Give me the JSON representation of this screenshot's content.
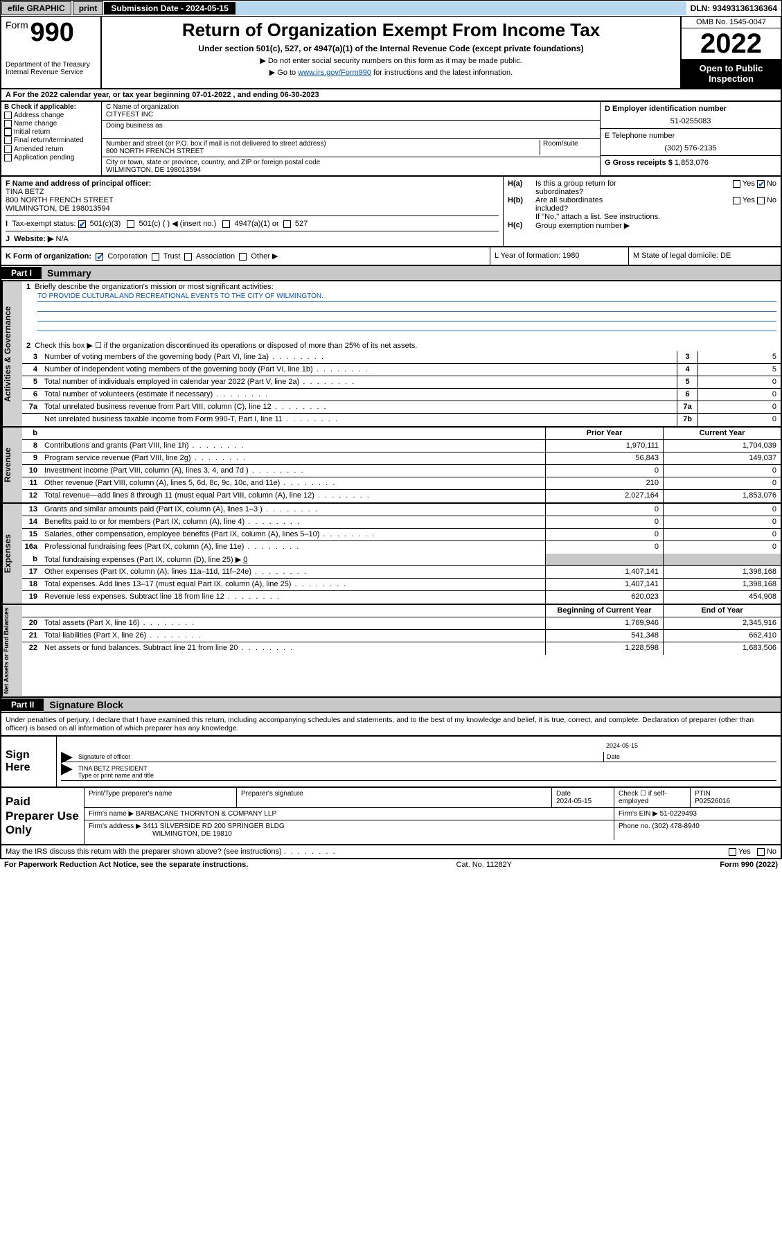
{
  "topbar": {
    "efile": "efile GRAPHIC",
    "print": "print",
    "subdate_label": "Submission Date - 2024-05-15",
    "dln": "DLN: 93493136136364"
  },
  "header": {
    "form_word": "Form",
    "form_num": "990",
    "dept": "Department of the Treasury",
    "irs": "Internal Revenue Service",
    "title": "Return of Organization Exempt From Income Tax",
    "subtitle": "Under section 501(c), 527, or 4947(a)(1) of the Internal Revenue Code (except private foundations)",
    "note1": "▶ Do not enter social security numbers on this form as it may be made public.",
    "note2_pre": "▶ Go to ",
    "note2_link": "www.irs.gov/Form990",
    "note2_post": " for instructions and the latest information.",
    "omb": "OMB No. 1545-0047",
    "year": "2022",
    "open": "Open to Public Inspection"
  },
  "line_a": "A For the 2022 calendar year, or tax year beginning 07-01-2022    , and ending 06-30-2023",
  "col_b": {
    "label": "B Check if applicable:",
    "items": [
      "Address change",
      "Name change",
      "Initial return",
      "Final return/terminated",
      "Amended return",
      "Application pending"
    ]
  },
  "col_c": {
    "c_label": "C Name of organization",
    "c_val": "CITYFEST INC",
    "dba_label": "Doing business as",
    "addr_label": "Number and street (or P.O. box if mail is not delivered to street address)",
    "room_label": "Room/suite",
    "addr_val": "800 NORTH FRENCH STREET",
    "city_label": "City or town, state or province, country, and ZIP or foreign postal code",
    "city_val": "WILMINGTON, DE  198013594",
    "f_label": "F Name and address of principal officer:",
    "f_name": "TINA BETZ",
    "f_addr1": "800 NORTH FRENCH STREET",
    "f_addr2": "WILMINGTON, DE  198013594"
  },
  "col_de": {
    "d_label": "D Employer identification number",
    "d_val": "51-0255083",
    "e_label": "E Telephone number",
    "e_val": "(302) 576-2135",
    "g_label": "G Gross receipts $",
    "g_val": "1,853,076"
  },
  "col_h": {
    "ha_label": "H(a)",
    "ha_q1": "Is this a group return for",
    "ha_q2": "subordinates?",
    "hb_label": "H(b)",
    "hb_q1": "Are all subordinates",
    "hb_q2": "included?",
    "hb_note": "If \"No,\" attach a list. See instructions.",
    "hc_label": "H(c)",
    "hc_q": "Group exemption number ▶",
    "yes": "Yes",
    "no": "No"
  },
  "row_i": {
    "label": "Tax-exempt status:",
    "opt1": "501(c)(3)",
    "opt2": "501(c) (  ) ◀ (insert no.)",
    "opt3": "4947(a)(1) or",
    "opt4": "527"
  },
  "row_j": {
    "label": "Website: ▶",
    "val": "N/A"
  },
  "row_k": {
    "k_label": "K Form of organization:",
    "opts": [
      "Corporation",
      "Trust",
      "Association",
      "Other ▶"
    ],
    "l": "L Year of formation: 1980",
    "m": "M State of legal domicile: DE"
  },
  "parts": {
    "p1": "Part I",
    "p1_title": "Summary",
    "p2": "Part II",
    "p2_title": "Signature Block"
  },
  "summary": {
    "sidebars": [
      "Activities & Governance",
      "Revenue",
      "Expenses",
      "Net Assets or Fund Balances"
    ],
    "line1_label": "Briefly describe the organization's mission or most significant activities:",
    "line1_val": "TO PROVIDE CULTURAL AND RECREATIONAL EVENTS TO THE CITY OF WILMINGTON.",
    "line2": "Check this box ▶ ☐  if the organization discontinued its operations or disposed of more than 25% of its net assets.",
    "gov_rows": [
      {
        "n": "3",
        "t": "Number of voting members of the governing body (Part VI, line 1a)",
        "bn": "3",
        "v": "5"
      },
      {
        "n": "4",
        "t": "Number of independent voting members of the governing body (Part VI, line 1b)",
        "bn": "4",
        "v": "5"
      },
      {
        "n": "5",
        "t": "Total number of individuals employed in calendar year 2022 (Part V, line 2a)",
        "bn": "5",
        "v": "0"
      },
      {
        "n": "6",
        "t": "Total number of volunteers (estimate if necessary)",
        "bn": "6",
        "v": "0"
      },
      {
        "n": "7a",
        "t": "Total unrelated business revenue from Part VIII, column (C), line 12",
        "bn": "7a",
        "v": "0"
      },
      {
        "n": "",
        "t": "Net unrelated business taxable income from Form 990-T, Part I, line 11",
        "bn": "7b",
        "v": "0"
      }
    ],
    "col_hdr_prior": "Prior Year",
    "col_hdr_curr": "Current Year",
    "rev_rows": [
      {
        "n": "8",
        "t": "Contributions and grants (Part VIII, line 1h)",
        "p": "1,970,111",
        "c": "1,704,039"
      },
      {
        "n": "9",
        "t": "Program service revenue (Part VIII, line 2g)",
        "p": "56,843",
        "c": "149,037"
      },
      {
        "n": "10",
        "t": "Investment income (Part VIII, column (A), lines 3, 4, and 7d )",
        "p": "0",
        "c": "0"
      },
      {
        "n": "11",
        "t": "Other revenue (Part VIII, column (A), lines 5, 6d, 8c, 9c, 10c, and 11e)",
        "p": "210",
        "c": "0"
      },
      {
        "n": "12",
        "t": "Total revenue—add lines 8 through 11 (must equal Part VIII, column (A), line 12)",
        "p": "2,027,164",
        "c": "1,853,076"
      }
    ],
    "exp_rows": [
      {
        "n": "13",
        "t": "Grants and similar amounts paid (Part IX, column (A), lines 1–3 )",
        "p": "0",
        "c": "0"
      },
      {
        "n": "14",
        "t": "Benefits paid to or for members (Part IX, column (A), line 4)",
        "p": "0",
        "c": "0"
      },
      {
        "n": "15",
        "t": "Salaries, other compensation, employee benefits (Part IX, column (A), lines 5–10)",
        "p": "0",
        "c": "0"
      },
      {
        "n": "16a",
        "t": "Professional fundraising fees (Part IX, column (A), line 11e)",
        "p": "0",
        "c": "0"
      }
    ],
    "exp_16b_n": "b",
    "exp_16b_t": "Total fundraising expenses (Part IX, column (D), line 25) ▶",
    "exp_16b_v": "0",
    "exp_rows2": [
      {
        "n": "17",
        "t": "Other expenses (Part IX, column (A), lines 11a–11d, 11f–24e)",
        "p": "1,407,141",
        "c": "1,398,168"
      },
      {
        "n": "18",
        "t": "Total expenses. Add lines 13–17 (must equal Part IX, column (A), line 25)",
        "p": "1,407,141",
        "c": "1,398,168"
      },
      {
        "n": "19",
        "t": "Revenue less expenses. Subtract line 18 from line 12",
        "p": "620,023",
        "c": "454,908"
      }
    ],
    "na_hdr_prior": "Beginning of Current Year",
    "na_hdr_curr": "End of Year",
    "na_rows": [
      {
        "n": "20",
        "t": "Total assets (Part X, line 16)",
        "p": "1,769,946",
        "c": "2,345,916"
      },
      {
        "n": "21",
        "t": "Total liabilities (Part X, line 26)",
        "p": "541,348",
        "c": "662,410"
      },
      {
        "n": "22",
        "t": "Net assets or fund balances. Subtract line 21 from line 20",
        "p": "1,228,598",
        "c": "1,683,506"
      }
    ]
  },
  "penalty": "Under penalties of perjury, I declare that I have examined this return, including accompanying schedules and statements, and to the best of my knowledge and belief, it is true, correct, and complete. Declaration of preparer (other than officer) is based on all information of which preparer has any knowledge.",
  "sign": {
    "left": "Sign Here",
    "sig_label": "Signature of officer",
    "date_val": "2024-05-15",
    "date_label": "Date",
    "name": "TINA BETZ  PRESIDENT",
    "name_label": "Type or print name and title"
  },
  "prep": {
    "left": "Paid Preparer Use Only",
    "hdr": [
      "Print/Type preparer's name",
      "Preparer's signature",
      "Date",
      "",
      "PTIN"
    ],
    "date": "2024-05-15",
    "check_label": "Check ☐ if self-employed",
    "ptin": "P02526016",
    "firm_label": "Firm's name    ▶",
    "firm": "BARBACANE THORNTON & COMPANY LLP",
    "ein_label": "Firm's EIN ▶",
    "ein": "51-0229493",
    "addr_label": "Firm's address ▶",
    "addr1": "3411 SILVERSIDE RD 200 SPRINGER BLDG",
    "addr2": "WILMINGTON, DE  19810",
    "phone_label": "Phone no.",
    "phone": "(302) 478-8940"
  },
  "footer": {
    "discuss": "May the IRS discuss this return with the preparer shown above? (see instructions)",
    "yes": "Yes",
    "no": "No",
    "paperwork": "For Paperwork Reduction Act Notice, see the separate instructions.",
    "cat": "Cat. No. 11282Y",
    "form": "Form 990 (2022)"
  }
}
